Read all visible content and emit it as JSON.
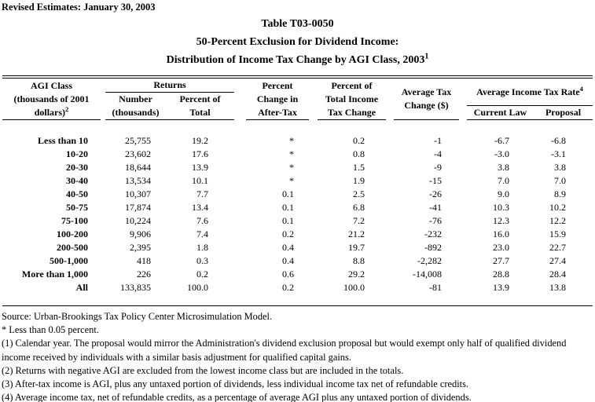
{
  "header": {
    "revised_note": "Revised Estimates: January 30, 2003",
    "title_line1": "Table T03-0050",
    "title_line2": "50-Percent Exclusion for Dividend Income:",
    "title_line3": "Distribution of Income Tax Change by AGI Class, 2003",
    "title_line3_sup": "1"
  },
  "table": {
    "headers": {
      "agi_line1": "AGI Class",
      "agi_line2": "(thousands of 2001",
      "agi_line3": "dollars)",
      "agi_sup": "2",
      "returns_group": "Returns",
      "number_line1": "Number",
      "number_line2": "(thousands)",
      "pct_of_total_line1": "Percent of",
      "pct_of_total_line2": "Total",
      "after_tax_line1": "Percent",
      "after_tax_line2": "Change in",
      "after_tax_line3": "After-Tax",
      "total_tax_change_line1": "Percent of",
      "total_tax_change_line2": "Total Income",
      "total_tax_change_line3": "Tax Change",
      "avg_tax_change_line1": "Average Tax",
      "avg_tax_change_line2": "Change ($)",
      "rate_group": "Average Income Tax Rate",
      "rate_group_sup": "4",
      "current_law": "Current Law",
      "proposal": "Proposal"
    },
    "column_keys": [
      "agi",
      "num",
      "pct",
      "chg",
      "tic",
      "avg",
      "cur",
      "pro"
    ],
    "rows": [
      {
        "agi": "Less than 10",
        "num": "25,755",
        "pct": "19.2",
        "chg": "*",
        "tic": "0.2",
        "avg": "-1",
        "cur": "-6.7",
        "pro": "-6.8"
      },
      {
        "agi": "10-20",
        "num": "23,602",
        "pct": "17.6",
        "chg": "*",
        "tic": "0.8",
        "avg": "-4",
        "cur": "-3.0",
        "pro": "-3.1"
      },
      {
        "agi": "20-30",
        "num": "18,644",
        "pct": "13.9",
        "chg": "*",
        "tic": "1.5",
        "avg": "-9",
        "cur": "3.8",
        "pro": "3.8"
      },
      {
        "agi": "30-40",
        "num": "13,534",
        "pct": "10.1",
        "chg": "*",
        "tic": "1.9",
        "avg": "-15",
        "cur": "7.0",
        "pro": "7.0"
      },
      {
        "agi": "40-50",
        "num": "10,307",
        "pct": "7.7",
        "chg": "0.1",
        "tic": "2.5",
        "avg": "-26",
        "cur": "9.0",
        "pro": "8.9"
      },
      {
        "agi": "50-75",
        "num": "17,874",
        "pct": "13.4",
        "chg": "0.1",
        "tic": "6.8",
        "avg": "-41",
        "cur": "10.3",
        "pro": "10.2"
      },
      {
        "agi": "75-100",
        "num": "10,224",
        "pct": "7.6",
        "chg": "0.1",
        "tic": "7.2",
        "avg": "-76",
        "cur": "12.3",
        "pro": "12.2"
      },
      {
        "agi": "100-200",
        "num": "9,906",
        "pct": "7.4",
        "chg": "0.2",
        "tic": "21.2",
        "avg": "-232",
        "cur": "16.0",
        "pro": "15.9"
      },
      {
        "agi": "200-500",
        "num": "2,395",
        "pct": "1.8",
        "chg": "0.4",
        "tic": "19.7",
        "avg": "-892",
        "cur": "23.0",
        "pro": "22.7"
      },
      {
        "agi": "500-1,000",
        "num": "418",
        "pct": "0.3",
        "chg": "0.4",
        "tic": "8.8",
        "avg": "-2,282",
        "cur": "27.7",
        "pro": "27.4"
      },
      {
        "agi": "More than 1,000",
        "num": "226",
        "pct": "0.2",
        "chg": "0.6",
        "tic": "29.2",
        "avg": "-14,008",
        "cur": "28.8",
        "pro": "28.4"
      },
      {
        "agi": "All",
        "num": "133,835",
        "pct": "100.0",
        "chg": "0.2",
        "tic": "100.0",
        "avg": "-81",
        "cur": "13.9",
        "pro": "13.8"
      }
    ]
  },
  "footnotes": [
    "Source: Urban-Brookings Tax Policy Center Microsimulation Model.",
    "* Less than 0.05 percent.",
    "(1) Calendar year. The proposal would mirror the Administration's dividend exclusion proposal but would exempt only half of qualified dividend income received by individuals with a similar basis adjustment for qualified capital gains.",
    "(2) Returns with negative AGI are excluded from the lowest income class but are included in the totals.",
    "(3) After-tax income is AGI, plus any untaxed portion of dividends, less individual income tax net of refundable credits.",
    "(4) Average income tax, net of refundable credits, as a percentage of average AGI plus any untaxed portion of dividends."
  ]
}
